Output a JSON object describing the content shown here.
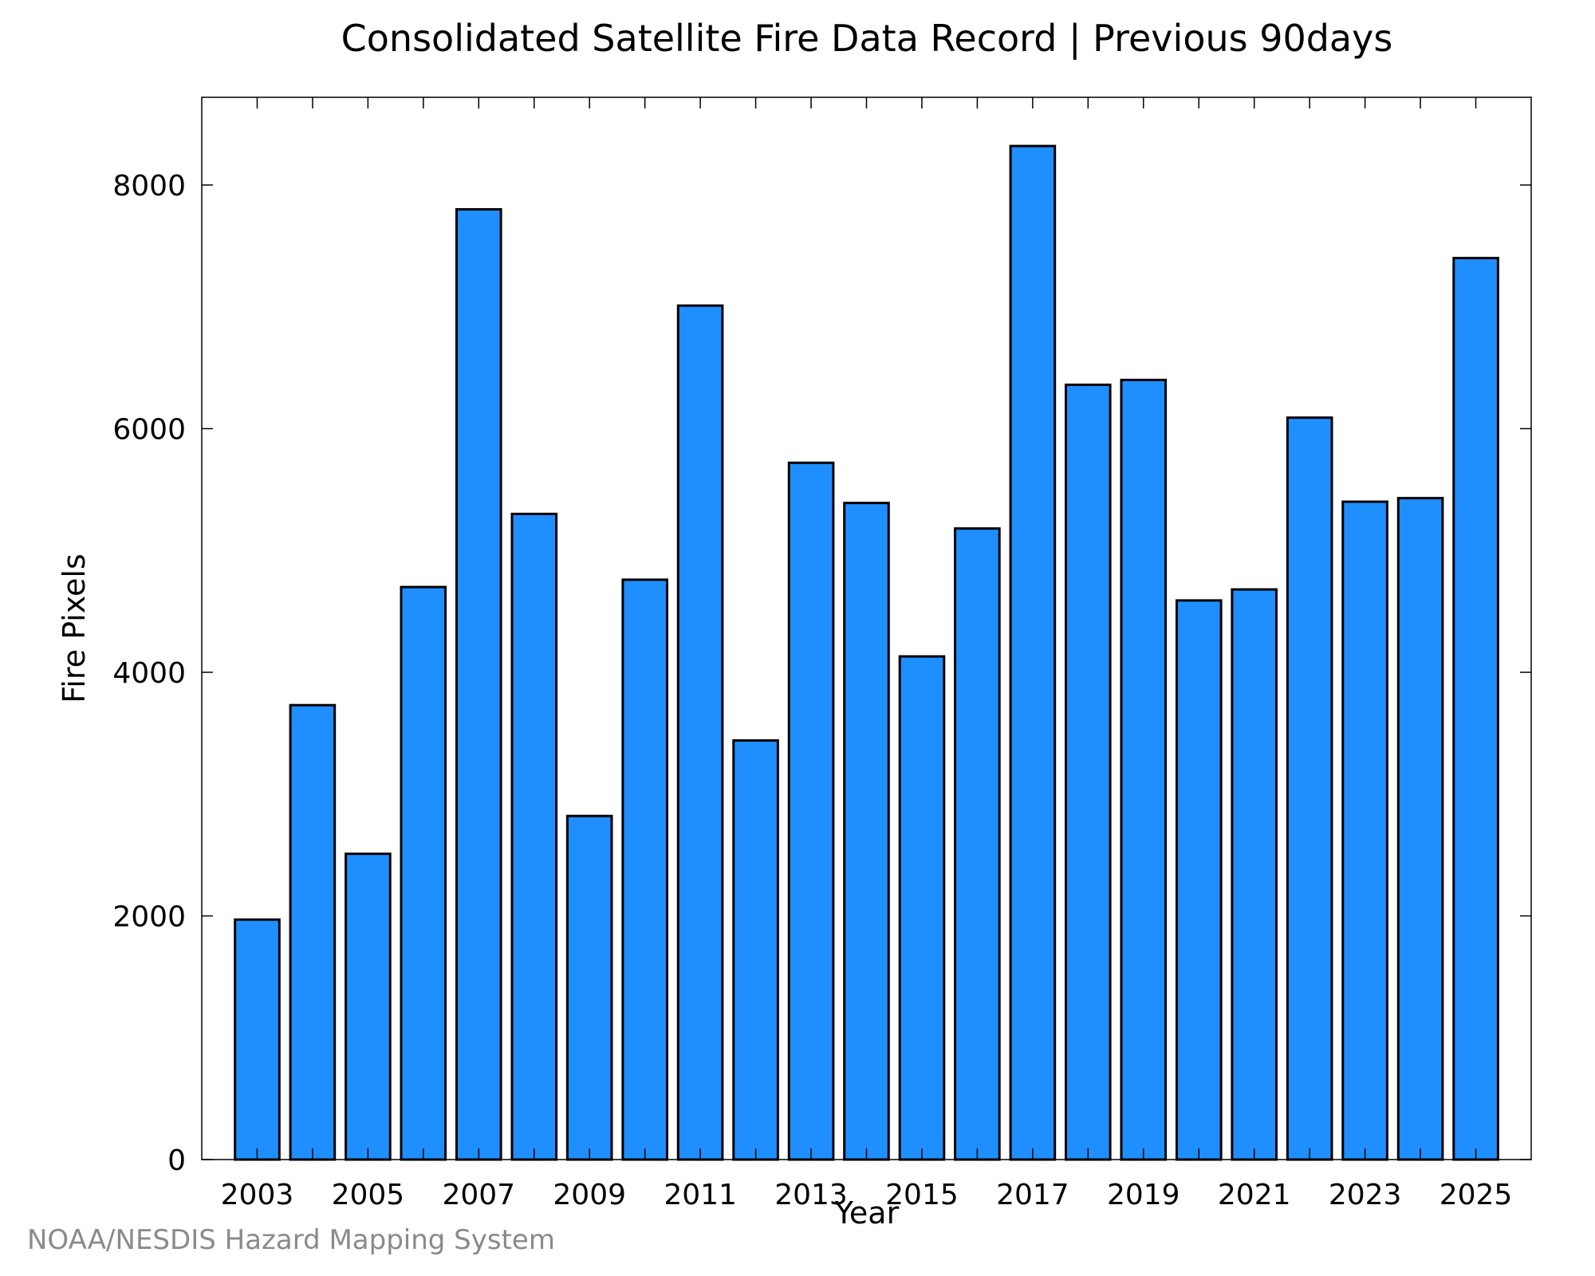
{
  "colors": {
    "bar_fill": "#1f8fff",
    "bar_stroke": "#000000",
    "axis": "#000000",
    "credit_text": "#8a8a8a"
  },
  "credit": "NOAA/NESDIS Hazard Mapping System",
  "chart_data": {
    "type": "bar",
    "title": "Consolidated Satellite Fire Data Record | Previous 90days",
    "xlabel": "Year",
    "ylabel": "Fire Pixels",
    "categories": [
      2003,
      2004,
      2005,
      2006,
      2007,
      2008,
      2009,
      2010,
      2011,
      2012,
      2013,
      2014,
      2015,
      2016,
      2017,
      2018,
      2019,
      2020,
      2021,
      2022,
      2023,
      2024,
      2025
    ],
    "values": [
      1970,
      3730,
      2510,
      4700,
      7800,
      5300,
      2820,
      4760,
      7010,
      3440,
      5720,
      5390,
      4130,
      5180,
      8320,
      6360,
      6400,
      4590,
      4680,
      6090,
      5400,
      5430,
      7400
    ],
    "x_tick_labels": [
      "2003",
      "2005",
      "2007",
      "2009",
      "2011",
      "2013",
      "2015",
      "2017",
      "2019",
      "2021",
      "2023",
      "2025"
    ],
    "y_tick_labels": [
      "0",
      "2000",
      "4000",
      "6000",
      "8000"
    ],
    "y_ticks": [
      0,
      2000,
      4000,
      6000,
      8000
    ],
    "xlim": [
      2002,
      2026
    ],
    "ylim": [
      0,
      8720
    ],
    "grid": false,
    "legend": "none"
  }
}
